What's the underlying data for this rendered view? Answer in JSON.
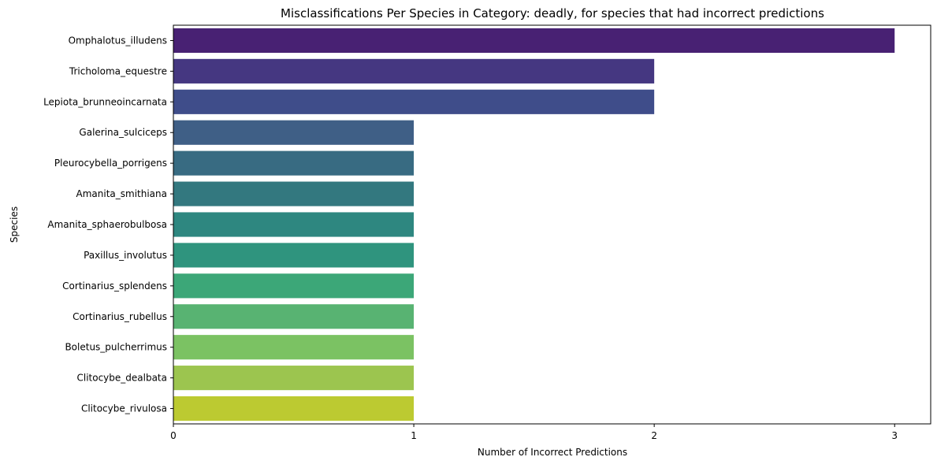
{
  "chart_data": {
    "type": "bar",
    "orientation": "horizontal",
    "title": "Misclassifications Per Species in Category: deadly, for species that had incorrect predictions",
    "xlabel": "Number of Incorrect Predictions",
    "ylabel": "Species",
    "xlim": [
      0,
      3.15
    ],
    "xticks": [
      0,
      1,
      2,
      3
    ],
    "grid": false,
    "legend": "none",
    "palette": "viridis",
    "categories": [
      "Omphalotus_illudens",
      "Tricholoma_equestre",
      "Lepiota_brunneoincarnata",
      "Galerina_sulciceps",
      "Pleurocybella_porrigens",
      "Amanita_smithiana",
      "Amanita_sphaerobulbosa",
      "Paxillus_involutus",
      "Cortinarius_splendens",
      "Cortinarius_rubellus",
      "Boletus_pulcherrimus",
      "Clitocybe_dealbata",
      "Clitocybe_rivulosa"
    ],
    "values": [
      3,
      2,
      2,
      1,
      1,
      1,
      1,
      1,
      1,
      1,
      1,
      1,
      1
    ],
    "colors": [
      "#482173",
      "#453781",
      "#3f4d8a",
      "#3f5f86",
      "#386b82",
      "#33787f",
      "#2e8780",
      "#2f947e",
      "#3ca778",
      "#58b372",
      "#7bc263",
      "#9cc54f",
      "#bcca31"
    ]
  }
}
